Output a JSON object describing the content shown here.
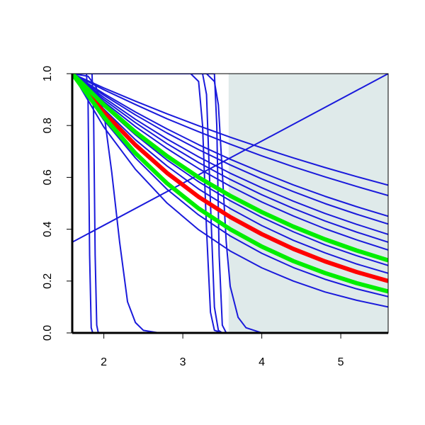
{
  "chart_data": {
    "type": "line",
    "xlim": [
      1.6,
      5.6
    ],
    "ylim": [
      0,
      1
    ],
    "xticks": [
      2,
      3,
      4,
      5
    ],
    "yticks": [
      {
        "value": 0,
        "label": "0.0"
      },
      0.2,
      0.4,
      0.6,
      0.8,
      {
        "value": 1,
        "label": "1.0"
      }
    ],
    "shaded_region": {
      "x": [
        3.58,
        5.6
      ],
      "color": "#dfeaea"
    },
    "x": [
      1.6,
      2.0,
      2.4,
      2.8,
      3.2,
      3.6,
      4.0,
      4.4,
      4.8,
      5.2,
      5.6
    ],
    "series": [
      {
        "color": "#1a1adb",
        "x": [
          1.6,
          1.78,
          1.8,
          1.82,
          1.84,
          1.86
        ],
        "values": [
          1,
          1,
          0.9,
          0.3,
          0.02,
          0
        ]
      },
      {
        "color": "#1a1adb",
        "x": [
          1.6,
          1.85,
          1.87,
          1.89,
          1.91,
          1.93
        ],
        "values": [
          1,
          1,
          0.85,
          0.3,
          0.03,
          0
        ]
      },
      {
        "color": "#1a1adb",
        "x": [
          1.6,
          1.8,
          1.9,
          2.0,
          2.1,
          2.2,
          2.3,
          2.4,
          2.5,
          2.7,
          3.0
        ],
        "values": [
          1,
          0.99,
          0.95,
          0.85,
          0.62,
          0.35,
          0.12,
          0.04,
          0.01,
          0,
          0
        ]
      },
      {
        "color": "#1a1adb",
        "x": [
          1.6,
          3.1,
          3.2,
          3.25,
          3.3,
          3.35,
          3.4,
          3.5
        ],
        "values": [
          1,
          1,
          0.97,
          0.8,
          0.4,
          0.08,
          0.01,
          0
        ]
      },
      {
        "color": "#1a1adb",
        "x": [
          1.6,
          3.25,
          3.3,
          3.35,
          3.4,
          3.45,
          3.5
        ],
        "values": [
          1,
          1,
          0.92,
          0.5,
          0.1,
          0.01,
          0
        ]
      },
      {
        "color": "#1a1adb",
        "x": [
          1.6,
          3.4,
          3.43,
          3.46,
          3.5,
          3.55
        ],
        "values": [
          1,
          1,
          0.8,
          0.3,
          0.03,
          0
        ]
      },
      {
        "color": "#1a1adb",
        "x": [
          1.6,
          3.3,
          3.4,
          3.45,
          3.5,
          3.55,
          3.6,
          3.7,
          3.8,
          3.9,
          4.0,
          4.2
        ],
        "values": [
          1,
          1,
          0.97,
          0.88,
          0.62,
          0.35,
          0.18,
          0.06,
          0.02,
          0.01,
          0,
          0
        ]
      },
      {
        "color": "#1a1adb",
        "x": [
          1.6,
          5.6
        ],
        "values": [
          0.35,
          1
        ]
      },
      {
        "color": "#1a1adb",
        "values": [
          1,
          0.945,
          0.894,
          0.845,
          0.799,
          0.755,
          0.714,
          0.675,
          0.638,
          0.603,
          0.57
        ]
      },
      {
        "color": "#1a1adb",
        "values": [
          1,
          0.938,
          0.881,
          0.826,
          0.776,
          0.728,
          0.683,
          0.641,
          0.602,
          0.565,
          0.53
        ]
      },
      {
        "color": "#1a1adb",
        "values": [
          1,
          0.923,
          0.852,
          0.787,
          0.726,
          0.67,
          0.619,
          0.571,
          0.527,
          0.487,
          0.45
        ]
      },
      {
        "color": "#1a1adb",
        "values": [
          1,
          0.917,
          0.841,
          0.771,
          0.707,
          0.648,
          0.594,
          0.545,
          0.499,
          0.458,
          0.42
        ]
      },
      {
        "color": "#1a1adb",
        "values": [
          1,
          0.908,
          0.824,
          0.748,
          0.679,
          0.616,
          0.56,
          0.508,
          0.461,
          0.419,
          0.38
        ]
      },
      {
        "color": "#1a1adb",
        "values": [
          1,
          0.9,
          0.811,
          0.73,
          0.657,
          0.592,
          0.533,
          0.48,
          0.432,
          0.389,
          0.35
        ]
      },
      {
        "color": "#1a1adb",
        "values": [
          1,
          0.892,
          0.796,
          0.711,
          0.634,
          0.566,
          0.505,
          0.451,
          0.402,
          0.359,
          0.32
        ]
      },
      {
        "color": "#1a1adb",
        "values": [
          1,
          0.874,
          0.764,
          0.667,
          0.583,
          0.51,
          0.446,
          0.39,
          0.34,
          0.298,
          0.26
        ]
      },
      {
        "color": "#1a1adb",
        "values": [
          1,
          0.863,
          0.745,
          0.644,
          0.555,
          0.48,
          0.414,
          0.357,
          0.309,
          0.266,
          0.23
        ]
      },
      {
        "color": "#1a1adb",
        "values": [
          1,
          0.821,
          0.675,
          0.554,
          0.455,
          0.374,
          0.307,
          0.252,
          0.207,
          0.17,
          0.14
        ]
      },
      {
        "color": "#1a1adb",
        "values": [
          1,
          0.794,
          0.631,
          0.501,
          0.398,
          0.316,
          0.251,
          0.2,
          0.158,
          0.126,
          0.1
        ]
      },
      {
        "color": "#ff0000",
        "width": 6,
        "values": [
          1,
          0.851,
          0.725,
          0.617,
          0.525,
          0.447,
          0.381,
          0.324,
          0.276,
          0.235,
          0.2
        ]
      },
      {
        "color": "#00ee00",
        "width": 6,
        "values": [
          1,
          0.88,
          0.775,
          0.682,
          0.6,
          0.529,
          0.466,
          0.41,
          0.361,
          0.318,
          0.28
        ]
      },
      {
        "color": "#00ee00",
        "width": 6,
        "values": [
          1,
          0.833,
          0.693,
          0.577,
          0.48,
          0.4,
          0.333,
          0.277,
          0.231,
          0.192,
          0.16
        ]
      }
    ]
  }
}
